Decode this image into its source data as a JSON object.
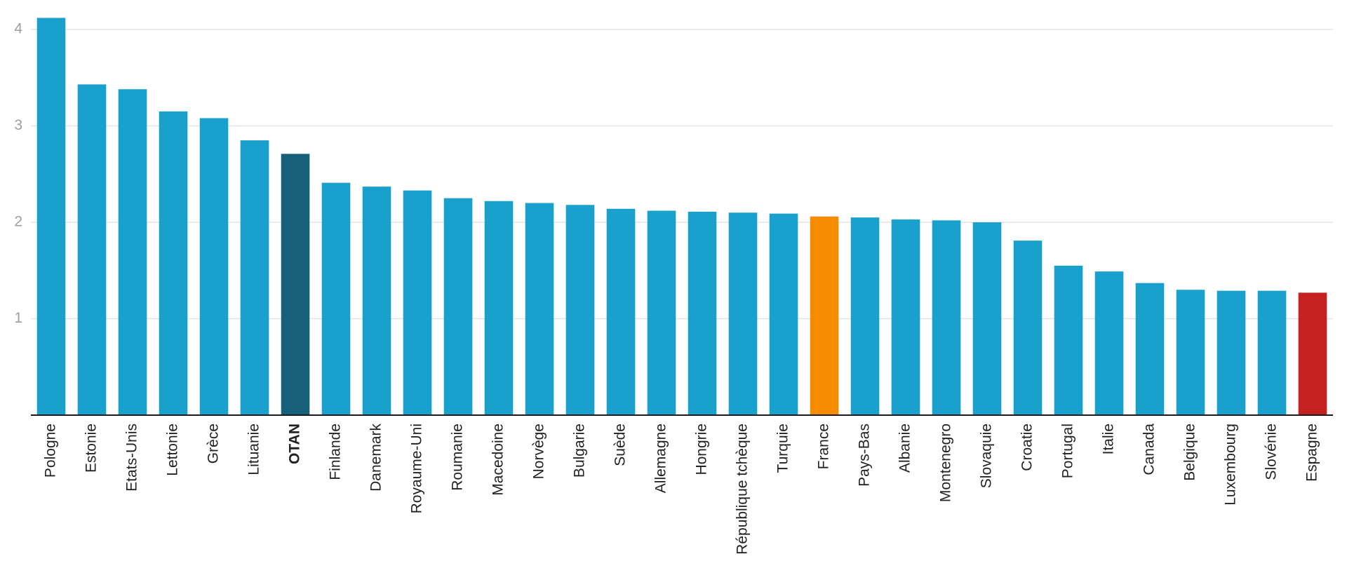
{
  "chart_data": {
    "type": "bar",
    "title": "",
    "xlabel": "",
    "ylabel": "",
    "ylim": [
      0,
      4.1
    ],
    "yticks": [
      1,
      2,
      3,
      4
    ],
    "grid": true,
    "legend": "none",
    "colors": {
      "default": "#1aa0cc",
      "OTAN": "#17607a",
      "France": "#f78b00",
      "Espagne": "#c62121",
      "grid": "#e3e3e3",
      "axis": "#1a1a1a",
      "tick_label": "#9e9e9e",
      "category_label": "#222222"
    },
    "bold_categories": [
      "OTAN"
    ],
    "categories": [
      "Pologne",
      "Estonie",
      "Etats-Unis",
      "Lettonie",
      "Grèce",
      "Lituanie",
      "OTAN",
      "Finlande",
      "Danemark",
      "Royaume-Uni",
      "Roumanie",
      "Macedoine",
      "Norvège",
      "Bulgarie",
      "Suède",
      "Allemagne",
      "Hongrie",
      "République tchèque",
      "Turquie",
      "France",
      "Pays-Bas",
      "Albanie",
      "Montenegro",
      "Slovaquie",
      "Croatie",
      "Portugal",
      "Italie",
      "Canada",
      "Belgique",
      "Luxembourg",
      "Slovénie",
      "Espagne"
    ],
    "values": [
      4.12,
      3.43,
      3.38,
      3.15,
      3.08,
      2.85,
      2.71,
      2.41,
      2.37,
      2.33,
      2.25,
      2.22,
      2.2,
      2.18,
      2.14,
      2.12,
      2.11,
      2.1,
      2.09,
      2.06,
      2.05,
      2.03,
      2.02,
      2.0,
      1.81,
      1.55,
      1.49,
      1.37,
      1.3,
      1.29,
      1.29,
      1.27
    ]
  }
}
